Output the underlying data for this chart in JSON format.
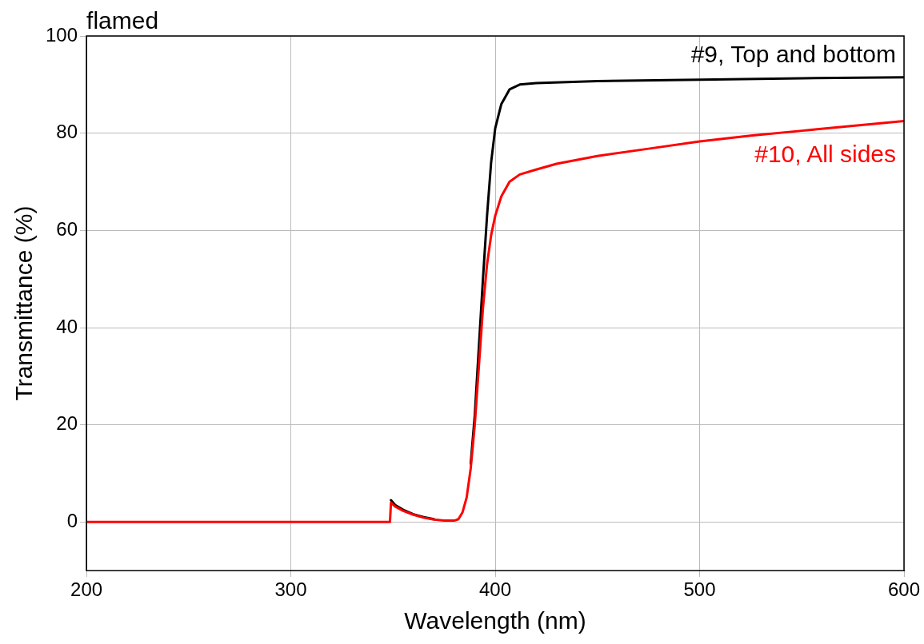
{
  "chart_data": {
    "type": "line",
    "title": "flamed",
    "xlabel": "Wavelength (nm)",
    "ylabel": "Transmittance (%)",
    "xlim": [
      200,
      600
    ],
    "xticks": [
      200,
      300,
      400,
      500,
      600
    ],
    "ylim": [
      -10,
      100
    ],
    "yticks": [
      0,
      20,
      40,
      60,
      80,
      100
    ],
    "grid": true,
    "legend": false,
    "marker": "none",
    "line_style": "solid",
    "series": [
      {
        "name": "#9, Top and bottom",
        "color": "#000000",
        "x": [
          349,
          351,
          355,
          360,
          365,
          370,
          375,
          380,
          382,
          384,
          386,
          388,
          390,
          392,
          394,
          396,
          398,
          400,
          403,
          407,
          412,
          420,
          450,
          500,
          550,
          600
        ],
        "values": [
          4.5,
          3.5,
          2.5,
          1.6,
          1,
          0.6,
          null,
          null,
          null,
          null,
          null,
          12,
          22,
          36,
          50,
          63,
          74,
          81,
          86,
          89,
          90,
          90.3,
          90.7,
          91,
          91.3,
          91.5
        ]
      },
      {
        "name": "#10, All sides",
        "color": "#ff0000",
        "x": [
          200,
          300,
          348.5,
          349,
          351,
          355,
          360,
          365,
          370,
          375,
          380,
          382,
          384,
          386,
          388,
          390,
          392,
          394,
          396,
          398,
          400,
          403,
          407,
          412,
          420,
          430,
          450,
          475,
          500,
          525,
          550,
          575,
          600
        ],
        "values": [
          0,
          0,
          0,
          4,
          3.2,
          2.3,
          1.5,
          0.9,
          0.5,
          0.3,
          0.3,
          0.6,
          2,
          5,
          11,
          20,
          32,
          44,
          53,
          59,
          63,
          67,
          70,
          71.5,
          72.5,
          73.7,
          75.3,
          76.8,
          78.3,
          79.5,
          80.5,
          81.5,
          82.5
        ]
      }
    ]
  }
}
